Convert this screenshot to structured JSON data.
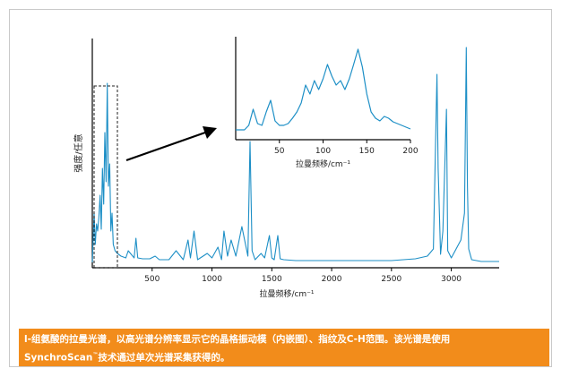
{
  "chart_data": [
    {
      "type": "line",
      "title": "",
      "xlabel": "拉曼频移/cm⁻¹",
      "ylabel": "强度/任意",
      "xlim": [
        0,
        3400
      ],
      "xticks": [
        500,
        1000,
        1500,
        2000,
        2500,
        3000
      ],
      "series": [
        {
          "values_x": [
            0,
            15,
            25,
            35,
            45,
            55,
            65,
            75,
            85,
            95,
            105,
            115,
            125,
            135,
            145,
            155,
            165,
            175,
            190,
            210,
            240,
            280,
            300,
            350,
            365,
            380,
            420,
            480,
            525,
            560,
            640,
            700,
            760,
            800,
            820,
            850,
            880,
            960,
            1000,
            1050,
            1080,
            1100,
            1130,
            1160,
            1200,
            1250,
            1300,
            1318,
            1335,
            1360,
            1410,
            1440,
            1480,
            1500,
            1520,
            1550,
            1570,
            1600,
            1700,
            2000,
            2500,
            2700,
            2800,
            2850,
            2880,
            2890,
            2910,
            2930,
            2960,
            2970,
            3000,
            3080,
            3110,
            3125,
            3135,
            3145,
            3170,
            3250,
            3350,
            3400
          ],
          "values_y": [
            5,
            60,
            25,
            48,
            40,
            55,
            80,
            42,
            110,
            70,
            150,
            95,
            205,
            90,
            115,
            40,
            60,
            25,
            18,
            15,
            12,
            10,
            18,
            10,
            32,
            10,
            9,
            9,
            12,
            8,
            8,
            18,
            8,
            30,
            10,
            40,
            8,
            15,
            10,
            22,
            8,
            40,
            12,
            30,
            12,
            45,
            12,
            140,
            18,
            8,
            15,
            10,
            35,
            10,
            8,
            35,
            9,
            8,
            7,
            7,
            7,
            9,
            12,
            20,
            215,
            110,
            14,
            40,
            176,
            18,
            10,
            30,
            60,
            245,
            90,
            20,
            8,
            6,
            6,
            6
          ]
        }
      ]
    },
    {
      "type": "line",
      "title": "",
      "xlabel": "拉曼频移/cm⁻¹",
      "ylabel": "",
      "xlim": [
        0,
        200
      ],
      "xticks": [
        50,
        100,
        150,
        200
      ],
      "series": [
        {
          "values_x": [
            0,
            10,
            15,
            20,
            25,
            30,
            35,
            40,
            45,
            50,
            55,
            60,
            65,
            70,
            75,
            80,
            85,
            90,
            95,
            100,
            105,
            110,
            115,
            120,
            125,
            130,
            135,
            140,
            145,
            150,
            155,
            160,
            165,
            170,
            175,
            180,
            185,
            190,
            195,
            200
          ],
          "values_y": [
            5,
            5,
            10,
            28,
            12,
            10,
            25,
            38,
            15,
            10,
            10,
            12,
            18,
            25,
            35,
            55,
            45,
            60,
            50,
            62,
            78,
            65,
            55,
            60,
            50,
            62,
            78,
            95,
            75,
            45,
            25,
            18,
            15,
            20,
            18,
            14,
            12,
            10,
            8,
            6
          ]
        }
      ]
    }
  ],
  "caption": {
    "line1": "l-组氨酸的拉曼光谱，以高光谱分辨率显示它的晶格振动模（内嵌图）、指纹及C-H范围。该光谱是使用",
    "line2_pre": "SynchroScan",
    "line2_sup": "™",
    "line2_post": "技术通过单次光谱采集获得的。"
  },
  "colors": {
    "series": "#1d8fc6",
    "caption_bg": "#f28c1b",
    "axis": "#000000"
  }
}
